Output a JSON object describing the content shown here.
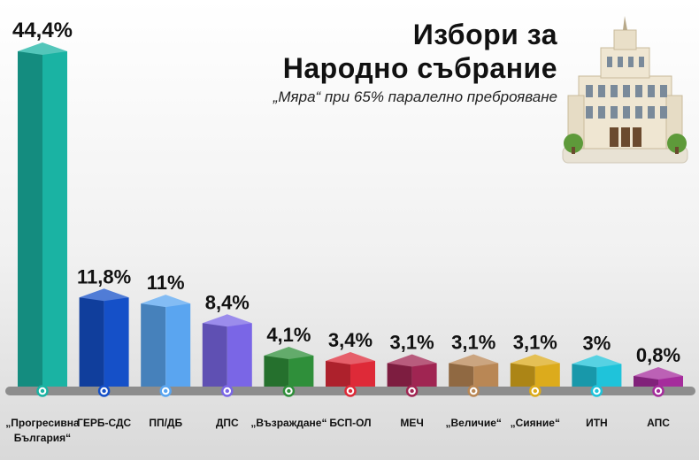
{
  "title_line1": "Избори за",
  "title_line2": "Народно събрание",
  "subtitle": "„Мяра“ при 65% паралелно преброяване",
  "chart_data": {
    "type": "bar",
    "title": "Избори за Народно събрание",
    "subtitle": "„Мяра“ при 65% паралелно преброяване",
    "categories": [
      "„Прогресивна България“",
      "ГЕРБ-СДС",
      "ПП/ДБ",
      "ДПС",
      "„Възраждане“",
      "БСП-ОЛ",
      "МЕЧ",
      "„Величие“",
      "„Сияние“",
      "ИТН",
      "АПС"
    ],
    "values": [
      44.4,
      11.8,
      11,
      8.4,
      4.1,
      3.4,
      3.1,
      3.1,
      3.1,
      3,
      0.8
    ],
    "value_labels": [
      "44,4%",
      "11,8%",
      "11%",
      "8,4%",
      "4,1%",
      "3,4%",
      "3,1%",
      "3,1%",
      "3,1%",
      "3%",
      "0,8%"
    ],
    "colors": [
      "#1ab3a3",
      "#1550c8",
      "#5aa5f0",
      "#7a66e6",
      "#2f8f3a",
      "#de2a38",
      "#a02552",
      "#b98755",
      "#dcab1c",
      "#1fc3da",
      "#a52c9c"
    ],
    "ylim": [
      0,
      44.4
    ],
    "unit": "%",
    "xlabel": "",
    "ylabel": "",
    "grid": false
  }
}
